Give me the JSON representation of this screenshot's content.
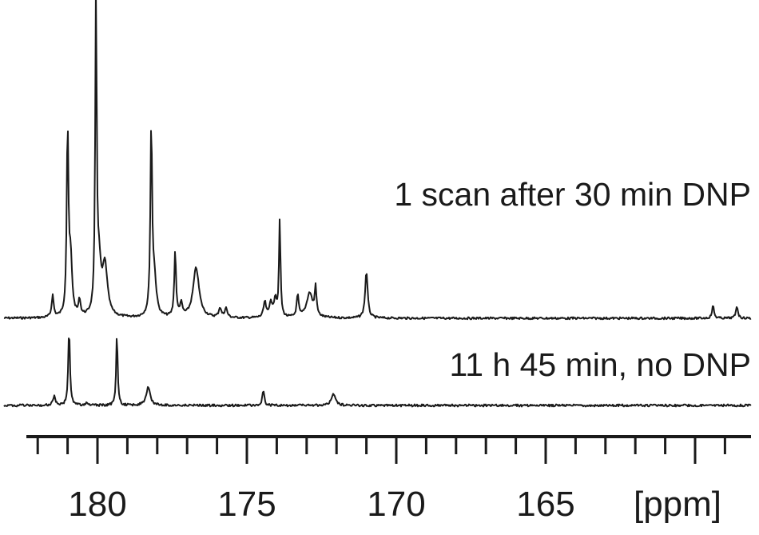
{
  "chart_data": {
    "type": "line",
    "xlabel": "[ppm]",
    "x_unit": "ppm",
    "xlim": [
      182.6,
      158.2
    ],
    "x_reversed": true,
    "x_tick_labels": [
      180,
      175,
      170,
      165
    ],
    "x_major_ticks": [
      180,
      175,
      170,
      165,
      160
    ],
    "x_minor_tick_step": 1,
    "y_axis_shown": false,
    "series": [
      {
        "name": "1 scan after 30 min DNP",
        "label": "1 scan after 30 min DNP",
        "peaks": [
          {
            "ppm": 181.5,
            "height": 0.07,
            "width": 0.04
          },
          {
            "ppm": 181.0,
            "height": 0.59,
            "width": 0.035
          },
          {
            "ppm": 180.9,
            "height": 0.18,
            "width": 0.06
          },
          {
            "ppm": 180.6,
            "height": 0.05,
            "width": 0.04
          },
          {
            "ppm": 180.05,
            "height": 1.0,
            "width": 0.03
          },
          {
            "ppm": 179.95,
            "height": 0.15,
            "width": 0.08
          },
          {
            "ppm": 179.75,
            "height": 0.16,
            "width": 0.1
          },
          {
            "ppm": 178.2,
            "height": 0.59,
            "width": 0.035
          },
          {
            "ppm": 178.1,
            "height": 0.12,
            "width": 0.08
          },
          {
            "ppm": 177.4,
            "height": 0.21,
            "width": 0.035
          },
          {
            "ppm": 177.2,
            "height": 0.04,
            "width": 0.05
          },
          {
            "ppm": 176.7,
            "height": 0.16,
            "width": 0.12
          },
          {
            "ppm": 175.9,
            "height": 0.03,
            "width": 0.05
          },
          {
            "ppm": 175.7,
            "height": 0.03,
            "width": 0.05
          },
          {
            "ppm": 174.4,
            "height": 0.05,
            "width": 0.05
          },
          {
            "ppm": 174.2,
            "height": 0.05,
            "width": 0.05
          },
          {
            "ppm": 174.05,
            "height": 0.06,
            "width": 0.05
          },
          {
            "ppm": 173.9,
            "height": 0.31,
            "width": 0.03
          },
          {
            "ppm": 173.3,
            "height": 0.07,
            "width": 0.04
          },
          {
            "ppm": 172.9,
            "height": 0.08,
            "width": 0.12
          },
          {
            "ppm": 172.7,
            "height": 0.09,
            "width": 0.035
          },
          {
            "ppm": 171.0,
            "height": 0.15,
            "width": 0.05
          },
          {
            "ppm": 159.4,
            "height": 0.04,
            "width": 0.04
          },
          {
            "ppm": 158.6,
            "height": 0.04,
            "width": 0.04
          }
        ]
      },
      {
        "name": "11 h 45 min, no DNP",
        "label": "11 h 45 min, no DNP",
        "peaks": [
          {
            "ppm": 181.45,
            "height": 0.03,
            "width": 0.05
          },
          {
            "ppm": 180.95,
            "height": 0.25,
            "width": 0.035
          },
          {
            "ppm": 180.35,
            "height": 0.01,
            "width": 0.05
          },
          {
            "ppm": 179.35,
            "height": 0.24,
            "width": 0.03
          },
          {
            "ppm": 178.3,
            "height": 0.06,
            "width": 0.08
          },
          {
            "ppm": 174.45,
            "height": 0.05,
            "width": 0.04
          },
          {
            "ppm": 172.1,
            "height": 0.04,
            "width": 0.08
          }
        ]
      }
    ]
  }
}
